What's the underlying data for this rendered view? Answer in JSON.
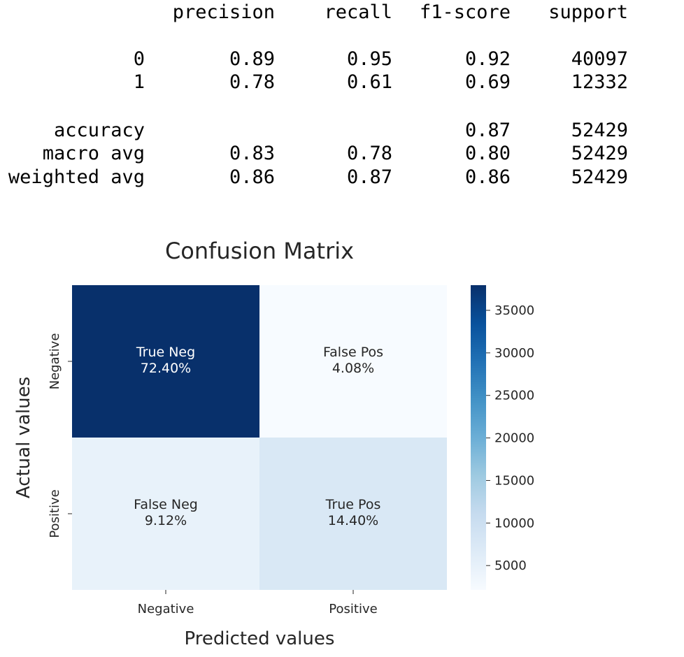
{
  "report": {
    "headers": [
      "precision",
      "recall",
      "f1-score",
      "support"
    ],
    "rows": [
      {
        "label": "0",
        "precision": "0.89",
        "recall": "0.95",
        "f1": "0.92",
        "support": "40097"
      },
      {
        "label": "1",
        "precision": "0.78",
        "recall": "0.61",
        "f1": "0.69",
        "support": "12332"
      }
    ],
    "summary": [
      {
        "label": "accuracy",
        "precision": "",
        "recall": "",
        "f1": "0.87",
        "support": "52429"
      },
      {
        "label": "macro avg",
        "precision": "0.83",
        "recall": "0.78",
        "f1": "0.80",
        "support": "52429"
      },
      {
        "label": "weighted avg",
        "precision": "0.86",
        "recall": "0.87",
        "f1": "0.86",
        "support": "52429"
      }
    ]
  },
  "chart_data": {
    "type": "heatmap",
    "title": "Confusion Matrix",
    "xlabel": "Predicted values",
    "ylabel": "Actual values",
    "x_categories": [
      "Negative",
      "Positive"
    ],
    "y_categories": [
      "Negative",
      "Positive"
    ],
    "values": [
      [
        37958,
        2139
      ],
      [
        4781,
        7551
      ]
    ],
    "cell_names": [
      [
        "True Neg",
        "False Pos"
      ],
      [
        "False Neg",
        "True Pos"
      ]
    ],
    "cell_percents": [
      [
        "72.40%",
        "4.08%"
      ],
      [
        "9.12%",
        "14.40%"
      ]
    ],
    "colormap": "Blues",
    "colorbar": {
      "min": 2139,
      "max": 37958,
      "ticks": [
        5000,
        10000,
        15000,
        20000,
        25000,
        30000,
        35000
      ],
      "tick_labels": [
        "5000",
        "10000",
        "15000",
        "20000",
        "25000",
        "30000",
        "35000"
      ]
    },
    "legend": "none",
    "grid": false
  }
}
